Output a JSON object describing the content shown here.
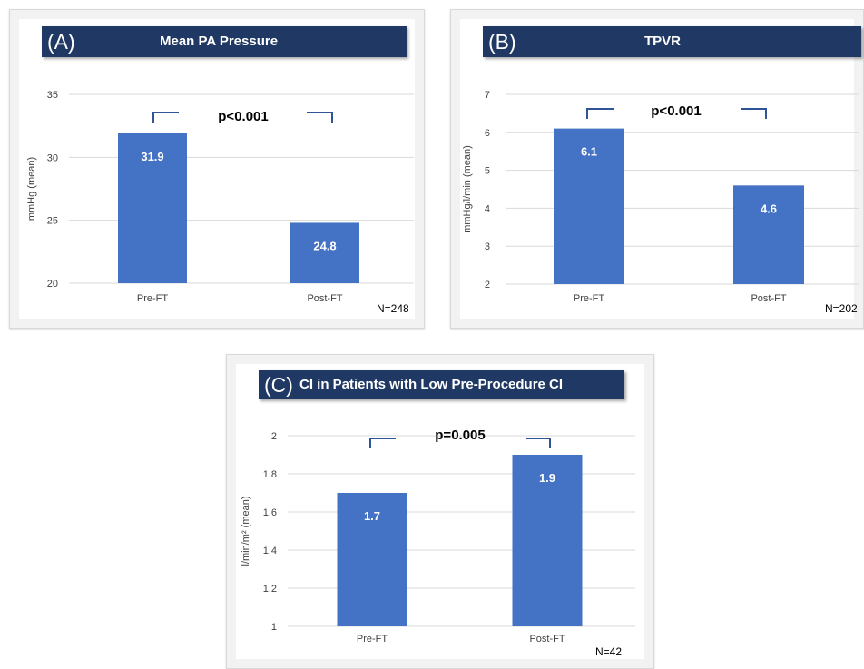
{
  "colors": {
    "bar": "#4472c4",
    "title_bg": "#1f3864",
    "bracket": "#2f5597",
    "grid": "#d9d9d9"
  },
  "chart_data": [
    {
      "type": "bar",
      "panel_letter": "(A)",
      "title": "Mean PA Pressure",
      "ylabel": "mmHg (mean)",
      "categories": [
        "Pre-FT",
        "Post-FT"
      ],
      "values": [
        31.9,
        24.8
      ],
      "value_labels": [
        "31.9",
        "24.8"
      ],
      "ylim": [
        20,
        35
      ],
      "yticks": [
        20,
        25,
        30,
        35
      ],
      "ytick_labels": [
        "20",
        "25",
        "30",
        "35"
      ],
      "p_value": "p<0.001",
      "n_label": "N=248",
      "grid": true
    },
    {
      "type": "bar",
      "panel_letter": "(B)",
      "title": "TPVR",
      "ylabel": "mmHg/l/min (mean)",
      "categories": [
        "Pre-FT",
        "Post-FT"
      ],
      "values": [
        6.1,
        4.6
      ],
      "value_labels": [
        "6.1",
        "4.6"
      ],
      "ylim": [
        2,
        7
      ],
      "yticks": [
        2,
        3,
        4,
        5,
        6,
        7
      ],
      "ytick_labels": [
        "2",
        "3",
        "4",
        "5",
        "6",
        "7"
      ],
      "p_value": "p<0.001",
      "n_label": "N=202",
      "grid": true
    },
    {
      "type": "bar",
      "panel_letter": "(C)",
      "title": "CI in Patients with Low Pre-Procedure CI",
      "ylabel": "l/min/m² (mean)",
      "categories": [
        "Pre-FT",
        "Post-FT"
      ],
      "values": [
        1.7,
        1.9
      ],
      "value_labels": [
        "1.7",
        "1.9"
      ],
      "ylim": [
        1,
        2
      ],
      "yticks": [
        1,
        1.2,
        1.4,
        1.6,
        1.8,
        2
      ],
      "ytick_labels": [
        "1",
        "1.2",
        "1.4",
        "1.6",
        "1.8",
        "2"
      ],
      "p_value": "p=0.005",
      "n_label": "N=42",
      "grid": true
    }
  ]
}
